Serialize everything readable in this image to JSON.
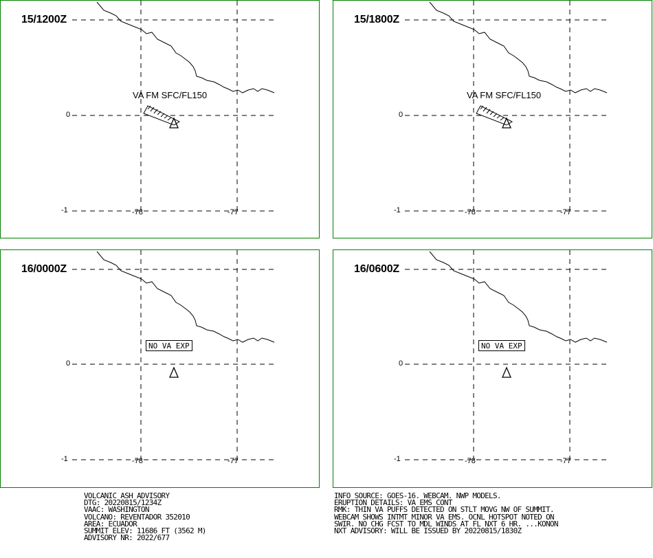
{
  "panels": [
    {
      "time": "15/1200Z",
      "va_label": "VA FM SFC/FL150",
      "no_va": ""
    },
    {
      "time": "15/1800Z",
      "va_label": "VA FM SFC/FL150",
      "no_va": ""
    },
    {
      "time": "16/0000Z",
      "va_label": "",
      "no_va": "NO VA EXP"
    },
    {
      "time": "16/0600Z",
      "va_label": "",
      "no_va": "NO VA EXP"
    }
  ],
  "axis": {
    "lat_labels": [
      "0",
      "-1"
    ],
    "lon_labels": [
      "-78",
      "-77"
    ]
  },
  "advisory_left": [
    "VOLCANIC ASH ADVISORY",
    "DTG: 20220815/1234Z",
    "VAAC: WASHINGTON",
    "VOLCANO: REVENTADOR 352010",
    "AREA: ECUADOR",
    "SUMMIT ELEV: 11686 FT (3562 M)",
    "ADVISORY NR: 2022/677"
  ],
  "advisory_right": [
    "INFO SOURCE: GOES-16. WEBCAM. NWP MODELS.",
    "ERUPTION DETAILS: VA EMS CONT",
    "RMK: THIN VA PUFFS DETECTED ON STLT MOVG NW OF SUMMIT.",
    "WEBCAM SHOWS INTMT MINOR VA EMS. OCNL HOTSPOT NOTED ON",
    "SWIR. NO CHG FCST TO MDL WINDS AT FL NXT 6 HR. ...KONON",
    "NXT ADVISORY: WILL BE ISSUED BY 20220815/1830Z"
  ],
  "colors": {
    "panel_border": "#008000",
    "lines": "#000000"
  }
}
